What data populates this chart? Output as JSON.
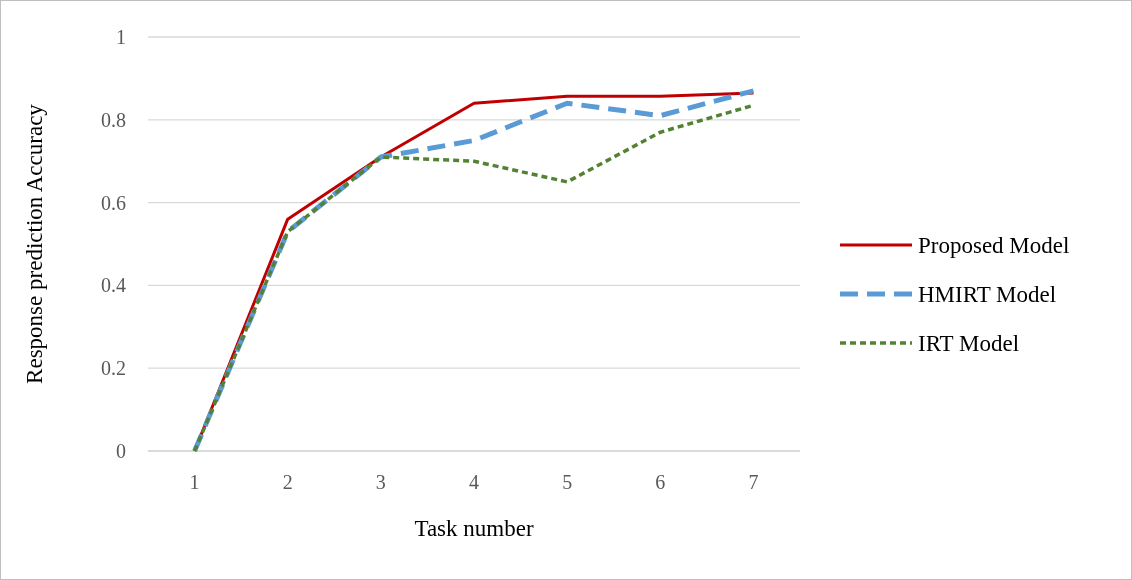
{
  "chart_data": {
    "type": "line",
    "xlabel": "Task number",
    "ylabel": "Response prediction Accuracy",
    "categories": [
      "1",
      "2",
      "3",
      "4",
      "5",
      "6",
      "7"
    ],
    "series": [
      {
        "name": "Proposed Model",
        "color": "#c00000",
        "line_style": "solid",
        "values": [
          0,
          0.56,
          0.71,
          0.84,
          0.857,
          0.857,
          0.865
        ]
      },
      {
        "name": "HMIRT Model",
        "color": "#5b9bd5",
        "line_style": "dashed",
        "values": [
          0,
          0.53,
          0.71,
          0.75,
          0.84,
          0.81,
          0.87
        ]
      },
      {
        "name": "IRT Model",
        "color": "#548235",
        "line_style": "dotted",
        "values": [
          0,
          0.53,
          0.71,
          0.7,
          0.65,
          0.77,
          0.835
        ]
      }
    ],
    "ylim": [
      0,
      1
    ],
    "yticks": [
      0,
      0.2,
      0.4,
      0.6,
      0.8,
      1
    ],
    "grid": "y",
    "legend": "right",
    "marker": "none"
  }
}
